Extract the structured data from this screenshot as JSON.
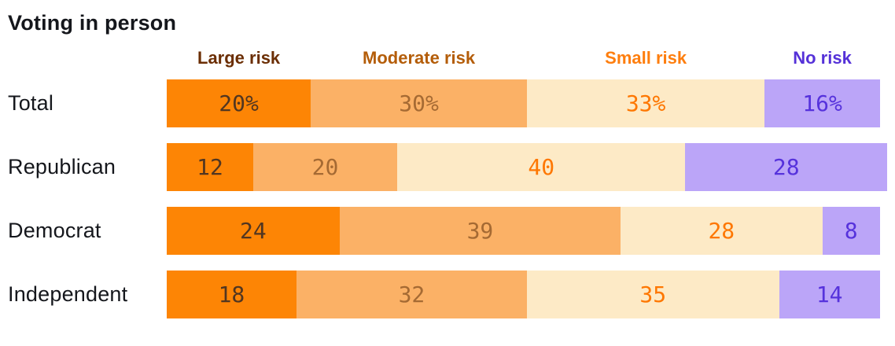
{
  "title": "Voting in person",
  "colors": {
    "title_text": "#15171c",
    "category_text": "#15171c",
    "large_risk_bg": "#fd8505",
    "large_risk_text": "#513621",
    "moderate_risk_bg": "#fbb166",
    "moderate_risk_text": "#a56a33",
    "small_risk_bg": "#fdeac6",
    "small_risk_text": "#fe7701",
    "no_risk_bg": "#bba5f8",
    "no_risk_text": "#5632dc",
    "legend_large_risk": "#6b2e04",
    "legend_moderate_risk": "#b45d09",
    "legend_small_risk": "#fe7e0e",
    "legend_no_risk": "#5531d8"
  },
  "chart_data": {
    "type": "bar",
    "variant": "horizontal-stacked-100pct",
    "title": "Voting in person",
    "unit": "percent",
    "xlim": [
      0,
      100
    ],
    "grid": false,
    "legend_position": "top",
    "legend": [
      "Large risk",
      "Moderate risk",
      "Small risk",
      "No risk"
    ],
    "categories": [
      "Total",
      "Republican",
      "Democrat",
      "Independent"
    ],
    "series": [
      {
        "name": "Large risk",
        "values": [
          20,
          12,
          24,
          18
        ]
      },
      {
        "name": "Moderate risk",
        "values": [
          30,
          20,
          39,
          32
        ]
      },
      {
        "name": "Small risk",
        "values": [
          33,
          40,
          28,
          35
        ]
      },
      {
        "name": "No risk",
        "values": [
          16,
          28,
          8,
          14
        ]
      }
    ],
    "rows": [
      {
        "label": "Total",
        "values": [
          20,
          30,
          33,
          16
        ],
        "display": [
          "20%",
          "30%",
          "33%",
          "16%"
        ]
      },
      {
        "label": "Republican",
        "values": [
          12,
          20,
          40,
          28
        ],
        "display": [
          "12",
          "20",
          "40",
          "28"
        ]
      },
      {
        "label": "Democrat",
        "values": [
          24,
          39,
          28,
          8
        ],
        "display": [
          "24",
          "39",
          "28",
          "8"
        ]
      },
      {
        "label": "Independent",
        "values": [
          18,
          32,
          35,
          14
        ],
        "display": [
          "18",
          "32",
          "35",
          "14"
        ]
      }
    ]
  }
}
